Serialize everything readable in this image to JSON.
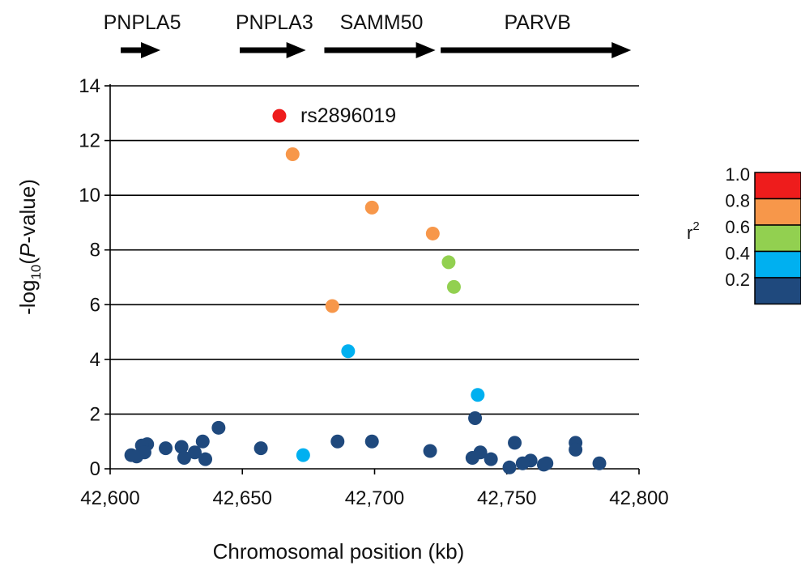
{
  "chart_data": {
    "type": "scatter",
    "title": "",
    "xlabel": "Chromosomal position (kb)",
    "ylabel": {
      "pre": "-log",
      "sub": "10",
      "open": "(",
      "ital": "P",
      "post": "-value)"
    },
    "xlim": [
      42600,
      42800
    ],
    "ylim": [
      0,
      14
    ],
    "x_ticks": [
      "42,600",
      "42,650",
      "42,700",
      "42,750",
      "42,800"
    ],
    "y_ticks": [
      "0",
      "2",
      "4",
      "6",
      "8",
      "10",
      "12",
      "14"
    ],
    "grid": "horizontal",
    "genes": [
      {
        "name": "PNPLA5",
        "start": 42604,
        "end": 42619
      },
      {
        "name": "PNPLA3",
        "start": 42649,
        "end": 42674
      },
      {
        "name": "SAMM50",
        "start": 42681,
        "end": 42723
      },
      {
        "name": "PARVB",
        "start": 42725,
        "end": 42797
      }
    ],
    "legend": {
      "title": "r",
      "title_sup": "2",
      "labels": [
        "1.0",
        "0.8",
        "0.6",
        "0.4",
        "0.2"
      ],
      "colors": [
        "#ee1c1c",
        "#f7974a",
        "#92d050",
        "#00b0f0",
        "#1f497d"
      ],
      "placement": "right"
    },
    "annotation": {
      "text": "rs2896019",
      "x": 42664,
      "y": 12.9
    },
    "points": [
      {
        "x": 42664,
        "y": 12.9,
        "r2": 1
      },
      {
        "x": 42669,
        "y": 11.5,
        "r2": 0.8
      },
      {
        "x": 42699,
        "y": 9.55,
        "r2": 0.8
      },
      {
        "x": 42722,
        "y": 8.6,
        "r2": 0.8
      },
      {
        "x": 42728,
        "y": 7.55,
        "r2": 0.6
      },
      {
        "x": 42730,
        "y": 6.65,
        "r2": 0.6
      },
      {
        "x": 42684,
        "y": 5.95,
        "r2": 0.8
      },
      {
        "x": 42690,
        "y": 4.3,
        "r2": 0.4
      },
      {
        "x": 42739,
        "y": 2.7,
        "r2": 0.4
      },
      {
        "x": 42673,
        "y": 0.5,
        "r2": 0.4
      },
      {
        "x": 42738,
        "y": 1.85,
        "r2": 0.2
      },
      {
        "x": 42641,
        "y": 1.5,
        "r2": 0.2
      },
      {
        "x": 42635,
        "y": 1.0,
        "r2": 0.2
      },
      {
        "x": 42686,
        "y": 1.0,
        "r2": 0.2
      },
      {
        "x": 42699,
        "y": 1.0,
        "r2": 0.2
      },
      {
        "x": 42753,
        "y": 0.95,
        "r2": 0.2
      },
      {
        "x": 42776,
        "y": 0.95,
        "r2": 0.2
      },
      {
        "x": 42614,
        "y": 0.9,
        "r2": 0.2
      },
      {
        "x": 42612,
        "y": 0.85,
        "r2": 0.2
      },
      {
        "x": 42627,
        "y": 0.8,
        "r2": 0.2
      },
      {
        "x": 42657,
        "y": 0.75,
        "r2": 0.2
      },
      {
        "x": 42621,
        "y": 0.75,
        "r2": 0.2
      },
      {
        "x": 42776,
        "y": 0.7,
        "r2": 0.2
      },
      {
        "x": 42721,
        "y": 0.65,
        "r2": 0.2
      },
      {
        "x": 42632,
        "y": 0.6,
        "r2": 0.2
      },
      {
        "x": 42613,
        "y": 0.6,
        "r2": 0.2
      },
      {
        "x": 42740,
        "y": 0.6,
        "r2": 0.2
      },
      {
        "x": 42608,
        "y": 0.5,
        "r2": 0.2
      },
      {
        "x": 42610,
        "y": 0.45,
        "r2": 0.2
      },
      {
        "x": 42628,
        "y": 0.4,
        "r2": 0.2
      },
      {
        "x": 42737,
        "y": 0.4,
        "r2": 0.2
      },
      {
        "x": 42636,
        "y": 0.35,
        "r2": 0.2
      },
      {
        "x": 42744,
        "y": 0.35,
        "r2": 0.2
      },
      {
        "x": 42759,
        "y": 0.3,
        "r2": 0.2
      },
      {
        "x": 42756,
        "y": 0.2,
        "r2": 0.2
      },
      {
        "x": 42765,
        "y": 0.2,
        "r2": 0.2
      },
      {
        "x": 42785,
        "y": 0.2,
        "r2": 0.2
      },
      {
        "x": 42764,
        "y": 0.15,
        "r2": 0.2
      },
      {
        "x": 42751,
        "y": 0.05,
        "r2": 0.2
      }
    ]
  }
}
